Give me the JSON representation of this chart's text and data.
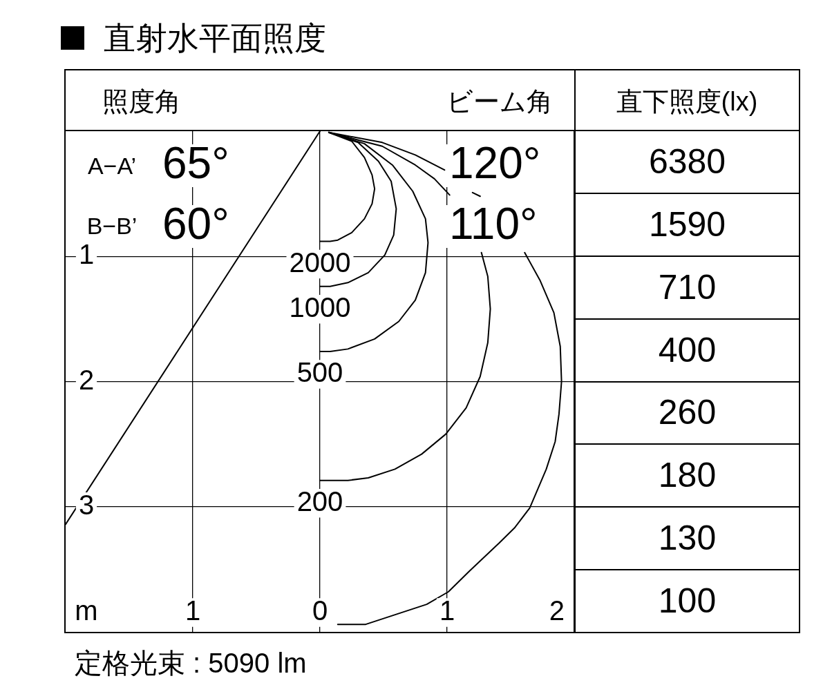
{
  "chart_data": [
    {
      "type": "line",
      "title": "直射水平面照度",
      "xlabel": "m",
      "xlim": [
        -2,
        2
      ],
      "ylim": [
        4,
        0
      ],
      "xticks": [
        {
          "value": -1,
          "label": "1"
        },
        0,
        1,
        2
      ],
      "yticks": [
        1,
        2,
        3
      ],
      "grid": true,
      "series": [
        {
          "name": "2000",
          "color": "#000000",
          "x": [
            0.07,
            0.25,
            0.35,
            0.41,
            0.43,
            0.41,
            0.35,
            0.25,
            0.14,
            0.08,
            0
          ],
          "values": [
            0.01,
            0.08,
            0.21,
            0.35,
            0.46,
            0.58,
            0.7,
            0.81,
            0.87,
            0.88,
            0.88
          ]
        },
        {
          "name": "1000",
          "color": "#000000",
          "x": [
            0.07,
            0.3,
            0.46,
            0.56,
            0.6,
            0.58,
            0.51,
            0.38,
            0.22,
            0.08,
            0
          ],
          "values": [
            0.01,
            0.09,
            0.24,
            0.4,
            0.62,
            0.83,
            0.99,
            1.13,
            1.21,
            1.24,
            1.24
          ]
        },
        {
          "name": "500",
          "color": "#000000",
          "x": [
            0.07,
            0.35,
            0.57,
            0.73,
            0.83,
            0.85,
            0.83,
            0.75,
            0.62,
            0.43,
            0.22,
            0.08,
            0
          ],
          "values": [
            0.01,
            0.1,
            0.27,
            0.48,
            0.7,
            0.89,
            1.13,
            1.35,
            1.52,
            1.66,
            1.74,
            1.76,
            1.76
          ]
        },
        {
          "name": "200",
          "color": "#000000",
          "x": [
            0.07,
            0.49,
            0.75,
            0.9,
            1.02,
            1.17,
            1.27,
            1.32,
            1.34,
            1.32,
            1.26,
            1.15,
            0.99,
            0.8,
            0.59,
            0.38,
            0.22,
            0
          ],
          "values": [
            0.01,
            0.12,
            0.27,
            0.38,
            0.51,
            null,
            0.97,
            1.16,
            1.42,
            1.69,
            1.96,
            2.21,
            2.42,
            2.58,
            2.7,
            2.77,
            2.79,
            2.79
          ]
        },
        {
          "color": "#000000",
          "x": [
            0.07,
            0.49,
            0.75,
            0.98,
            1.1,
            1.2,
            1.26,
            1.43,
            1.61,
            1.73,
            1.84,
            1.89,
            1.9,
            1.88,
            1.85,
            1.78,
            1.65,
            1.53,
            1.41,
            1.18,
            1.01,
            0.84,
            0.6,
            0.36,
            0.14
          ],
          "values": [
            0.01,
            0.09,
            0.19,
            0.31,
            null,
            0.49,
            0.52,
            null,
            0.97,
            1.19,
            1.45,
            1.72,
            2.0,
            2.26,
            2.48,
            2.7,
            3.01,
            3.17,
            3.29,
            3.51,
            3.68,
            3.78,
            3.86,
            3.94,
            3.94
          ]
        },
        {
          "color": "#000000",
          "x": [
            0,
            -2
          ],
          "values": [
            0,
            3.14
          ]
        }
      ],
      "annotations": [
        "照度角",
        "ビーム角",
        "A−A’",
        "65°",
        "B−B’",
        "60°",
        "120°",
        "110°",
        "定格光束 : 5090 lm"
      ]
    },
    {
      "type": "other",
      "title": "直下照度(lx)",
      "values": [
        6380,
        1590,
        710,
        400,
        260,
        180,
        130,
        100
      ],
      "data_labels": true
    }
  ]
}
